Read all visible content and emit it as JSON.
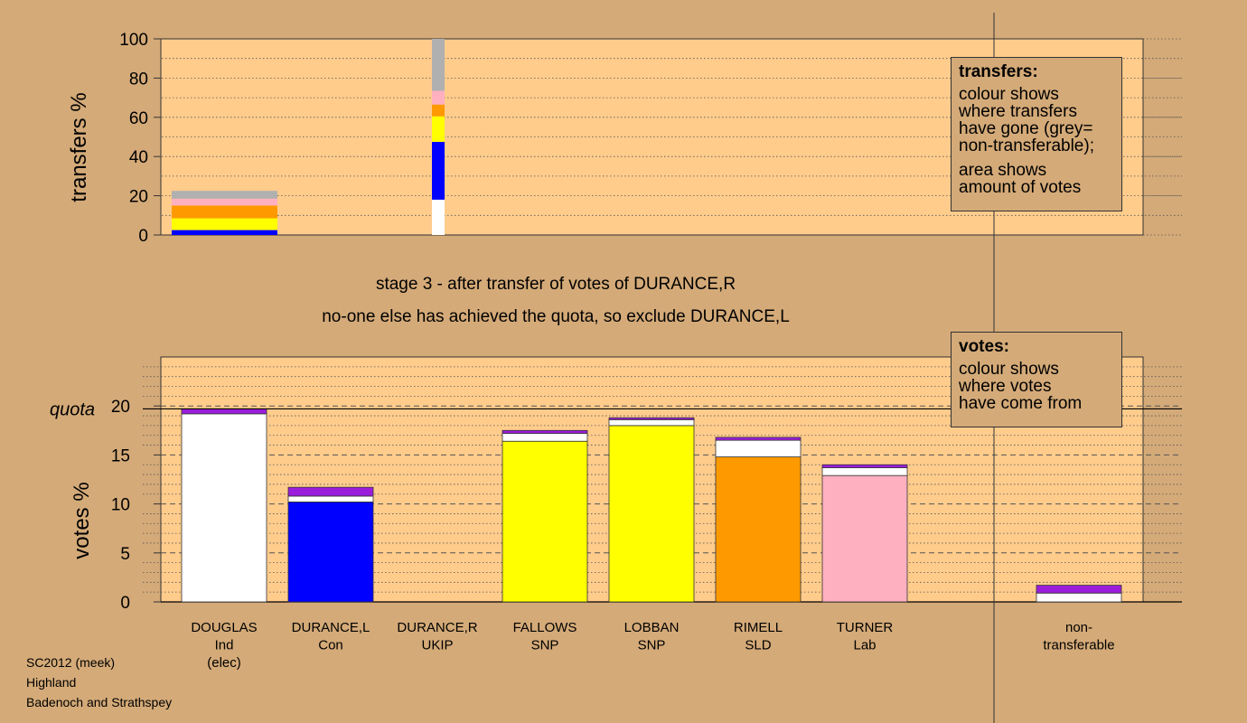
{
  "transfers_chart": {
    "ylabel": "transfers %",
    "y_ticks": [
      "0",
      "20",
      "40",
      "60",
      "80",
      "100"
    ]
  },
  "stage_text": {
    "line1": "stage 3 - after transfer of votes of DURANCE,R",
    "line2": "no-one else has achieved the quota, so exclude DURANCE,L"
  },
  "votes_chart": {
    "ylabel": "votes %",
    "quota_label": "quota",
    "y_ticks": [
      "0",
      "5",
      "10",
      "15",
      "20"
    ]
  },
  "legend_transfers": {
    "title": "transfers:",
    "lines": [
      "colour shows",
      "where transfers",
      "have gone (grey=",
      "non-transferable);"
    ],
    "lines2": [
      "area shows",
      "amount of votes"
    ]
  },
  "legend_votes": {
    "title": "votes:",
    "lines": [
      "colour shows",
      "where votes",
      "have come from"
    ]
  },
  "footer": {
    "line1": "SC2012 (meek)",
    "line2": "Highland",
    "line3": "Badenoch and Strathspey"
  },
  "colors": {
    "background": "#d4aa78",
    "plot_bg": "#ffcc8c",
    "Ind": "#ffffff",
    "Con": "#0000ff",
    "SNP": "#ffff00",
    "SLD": "#ff9900",
    "Lab": "#ffb0c0",
    "non_transferable": "#b0b0b0",
    "transfer_in": "#9b1ddb"
  },
  "chart_data": [
    {
      "type": "bar",
      "stacked": true,
      "title": "",
      "ylabel": "transfers %",
      "ylim": [
        0,
        100
      ],
      "grid": true,
      "bars": [
        {
          "category": "DOUGLAS",
          "segments": [
            {
              "color": "#0000ff",
              "value": 2.5
            },
            {
              "color": "#ffff00",
              "value": 6
            },
            {
              "color": "#ff9900",
              "value": 6.5
            },
            {
              "color": "#ffb0c0",
              "value": 3.5
            },
            {
              "color": "#b0b0b0",
              "value": 4
            }
          ]
        },
        {
          "category": "DURANCE,R",
          "segments": [
            {
              "color": "#ffffff",
              "value": 18
            },
            {
              "color": "#0000ff",
              "value": 29.5
            },
            {
              "color": "#ffff00",
              "value": 13
            },
            {
              "color": "#ff9900",
              "value": 6
            },
            {
              "color": "#ffb0c0",
              "value": 7
            },
            {
              "color": "#b0b0b0",
              "value": 26.5
            }
          ]
        }
      ]
    },
    {
      "type": "bar",
      "stacked": true,
      "title": "",
      "ylabel": "votes %",
      "ylim": [
        0,
        25
      ],
      "quota": 19.7,
      "grid": true,
      "categories": [
        "DOUGLAS",
        "DURANCE,L",
        "DURANCE,R",
        "FALLOWS",
        "LOBBAN",
        "RIMELL",
        "TURNER",
        "non-transferable"
      ],
      "tick_labels": [
        [
          "DOUGLAS",
          "Ind",
          "(elec)"
        ],
        [
          "DURANCE,L",
          "Con"
        ],
        [
          "DURANCE,R",
          "UKIP"
        ],
        [
          "FALLOWS",
          "SNP"
        ],
        [
          "LOBBAN",
          "SNP"
        ],
        [
          "RIMELL",
          "SLD"
        ],
        [
          "TURNER",
          "Lab"
        ],
        [
          "non-",
          "transferable"
        ]
      ],
      "series": [
        {
          "values": [
            19.2,
            10.2,
            0,
            16.4,
            18.0,
            14.8,
            12.9,
            0
          ]
        },
        {
          "values": [
            0,
            0.6,
            0,
            0.8,
            0.6,
            1.7,
            0.8,
            0.9
          ]
        },
        {
          "values": [
            0.5,
            0.9,
            0,
            0.3,
            0.2,
            0.3,
            0.3,
            0.8
          ]
        }
      ],
      "series_colors": [
        [
          "#ffffff",
          "#0000ff",
          "#ffffff",
          "#ffff00",
          "#ffff00",
          "#ff9900",
          "#ffb0c0",
          "#ffffff"
        ],
        [
          "#ffffff",
          "#ffffff",
          "#ffffff",
          "#ffffff",
          "#ffffff",
          "#ffffff",
          "#ffffff",
          "#ffffff"
        ],
        [
          "#9b1ddb",
          "#9b1ddb",
          "#9b1ddb",
          "#9b1ddb",
          "#9b1ddb",
          "#9b1ddb",
          "#9b1ddb",
          "#9b1ddb"
        ]
      ]
    }
  ]
}
